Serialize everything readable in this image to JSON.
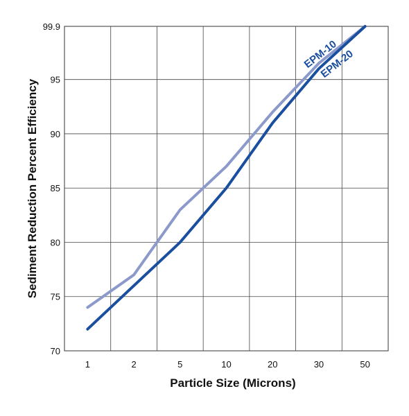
{
  "chart_data": {
    "type": "line",
    "xlabel": "Particle Size (Microns)",
    "ylabel": "Sediment Reduction Percent Efficiency",
    "categories": [
      "1",
      "2",
      "5",
      "10",
      "20",
      "30",
      "50"
    ],
    "y_ticks": [
      "70",
      "75",
      "80",
      "85",
      "90",
      "95",
      "99.9"
    ],
    "y_tick_values": [
      70,
      75,
      80,
      85,
      90,
      95,
      99.9
    ],
    "ylim": [
      70,
      99.9
    ],
    "grid": true,
    "series": [
      {
        "name": "EPM-10",
        "values": [
          74,
          77,
          83,
          87,
          92,
          96.5,
          99.9
        ],
        "color": "#8c9acb"
      },
      {
        "name": "EPM-20",
        "values": [
          72,
          76,
          80,
          85,
          91,
          96,
          99.9
        ],
        "color": "#1a4e9e"
      }
    ]
  }
}
